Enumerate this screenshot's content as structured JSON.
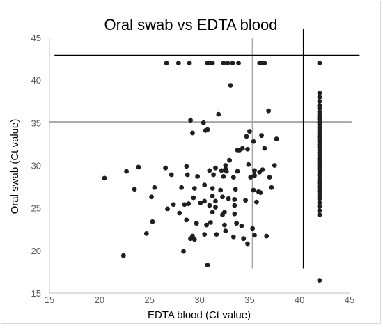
{
  "chart_data": {
    "type": "scatter",
    "title": "Oral swab vs EDTA blood",
    "xlabel": "EDTA blood (Ct value)",
    "ylabel": "Oral swab (Ct value)",
    "xlim": [
      15,
      45
    ],
    "ylim": [
      15,
      45
    ],
    "x_ticks": [
      "15",
      "20",
      "25",
      "30",
      "35",
      "40",
      "45"
    ],
    "y_ticks": [
      "15",
      "20",
      "25",
      "30",
      "35",
      "40",
      "45"
    ],
    "grid": false,
    "legend": "none",
    "colors": {
      "points": "#1f1f1f",
      "cutoff_lines": "#a6a6a6",
      "negative_lines": "#000000"
    },
    "reference_lines": [
      {
        "orientation": "horizontal",
        "y": 35.1,
        "x_range": [
          15,
          45.2
        ],
        "color": "#a6a6a6"
      },
      {
        "orientation": "vertical",
        "x": 35.3,
        "y_range": [
          17.9,
          45
        ],
        "color": "#a6a6a6"
      },
      {
        "orientation": "horizontal",
        "y": 42.9,
        "x_range": [
          15.5,
          46
        ],
        "color": "#000000"
      },
      {
        "orientation": "vertical",
        "x": 40.4,
        "y_range": [
          17.9,
          46
        ],
        "color": "#000000"
      }
    ],
    "points": [
      [
        26.7,
        42
      ],
      [
        27.9,
        42
      ],
      [
        29.0,
        42
      ],
      [
        30.8,
        42
      ],
      [
        31.0,
        42
      ],
      [
        31.3,
        42
      ],
      [
        32.4,
        42
      ],
      [
        32.8,
        42
      ],
      [
        33.3,
        42
      ],
      [
        33.9,
        42
      ],
      [
        36.0,
        42
      ],
      [
        36.2,
        42
      ],
      [
        36.5,
        42
      ],
      [
        33.1,
        39.4
      ],
      [
        36.9,
        36.4
      ],
      [
        31.9,
        36.0
      ],
      [
        29.1,
        35.3
      ],
      [
        30.4,
        35.0
      ],
      [
        30.6,
        34.1
      ],
      [
        30.8,
        34.2
      ],
      [
        29.3,
        33.8
      ],
      [
        35.0,
        34.0
      ],
      [
        34.7,
        33.4
      ],
      [
        36.2,
        33.5
      ],
      [
        37.7,
        33.1
      ],
      [
        35.4,
        32.8
      ],
      [
        34.3,
        32.0
      ],
      [
        33.8,
        31.8
      ],
      [
        34.0,
        31.8
      ],
      [
        34.8,
        31.9
      ],
      [
        36.5,
        32.0
      ],
      [
        32.6,
        30.0
      ],
      [
        33.0,
        30.6
      ],
      [
        34.9,
        30.1
      ],
      [
        36.0,
        29.2
      ],
      [
        37.5,
        30.0
      ],
      [
        23.9,
        29.8
      ],
      [
        26.6,
        29.7
      ],
      [
        28.7,
        29.9
      ],
      [
        31.0,
        29.4
      ],
      [
        31.6,
        29.7
      ],
      [
        32.2,
        29.4
      ],
      [
        32.6,
        29.6
      ],
      [
        32.7,
        29.3
      ],
      [
        33.8,
        29.3
      ],
      [
        35.5,
        29.4
      ],
      [
        36.3,
        29.5
      ],
      [
        37.0,
        28.6
      ],
      [
        20.5,
        28.5
      ],
      [
        22.7,
        29.3
      ],
      [
        27.2,
        28.9
      ],
      [
        28.8,
        28.9
      ],
      [
        29.8,
        28.7
      ],
      [
        31.4,
        28.9
      ],
      [
        32.4,
        28.7
      ],
      [
        33.4,
        28.6
      ],
      [
        35.1,
        28.6
      ],
      [
        35.5,
        28.8
      ],
      [
        25.5,
        27.4
      ],
      [
        23.5,
        27.2
      ],
      [
        28.2,
        27.4
      ],
      [
        29.5,
        27.3
      ],
      [
        30.5,
        27.7
      ],
      [
        31.3,
        27.3
      ],
      [
        32.1,
        27.1
      ],
      [
        33.6,
        27.2
      ],
      [
        35.4,
        27.1
      ],
      [
        35.9,
        26.9
      ],
      [
        36.1,
        26.8
      ],
      [
        37.2,
        27.4
      ],
      [
        25.2,
        26.3
      ],
      [
        29.4,
        26.2
      ],
      [
        31.3,
        26.4
      ],
      [
        31.6,
        25.8
      ],
      [
        32.3,
        26.3
      ],
      [
        32.9,
        26.1
      ],
      [
        33.5,
        26.0
      ],
      [
        34.6,
        25.9
      ],
      [
        35.7,
        25.7
      ],
      [
        27.4,
        25.4
      ],
      [
        28.5,
        25.4
      ],
      [
        28.9,
        25.5
      ],
      [
        30.1,
        25.6
      ],
      [
        30.5,
        25.8
      ],
      [
        31.0,
        25.3
      ],
      [
        31.6,
        25.1
      ],
      [
        33.5,
        25.3
      ],
      [
        26.8,
        24.9
      ],
      [
        28.0,
        24.4
      ],
      [
        31.3,
        24.5
      ],
      [
        32.3,
        24.2
      ],
      [
        32.5,
        24.5
      ],
      [
        33.5,
        24.3
      ],
      [
        25.3,
        23.4
      ],
      [
        28.7,
        23.6
      ],
      [
        29.7,
        23.2
      ],
      [
        30.7,
        23.0
      ],
      [
        31.1,
        23.3
      ],
      [
        32.5,
        23.0
      ],
      [
        33.7,
        23.2
      ],
      [
        34.2,
        22.9
      ],
      [
        24.7,
        22.0
      ],
      [
        29.1,
        21.4
      ],
      [
        29.3,
        21.7
      ],
      [
        29.5,
        21.3
      ],
      [
        30.5,
        21.9
      ],
      [
        31.7,
        21.9
      ],
      [
        32.6,
        22.3
      ],
      [
        33.4,
        21.6
      ],
      [
        34.4,
        21.4
      ],
      [
        35.3,
        22.6
      ],
      [
        35.5,
        21.8
      ],
      [
        36.7,
        21.7
      ],
      [
        22.4,
        19.4
      ],
      [
        28.4,
        19.9
      ],
      [
        34.8,
        20.8
      ],
      [
        30.8,
        18.3
      ],
      [
        42,
        42.0
      ],
      [
        42,
        38.5
      ],
      [
        42,
        38.0
      ],
      [
        42,
        37.5
      ],
      [
        42,
        37.0
      ],
      [
        42,
        36.7
      ],
      [
        42,
        36.3
      ],
      [
        42,
        36.0
      ],
      [
        42,
        35.7
      ],
      [
        42,
        35.4
      ],
      [
        42,
        35.1
      ],
      [
        42,
        34.8
      ],
      [
        42,
        34.5
      ],
      [
        42,
        34.2
      ],
      [
        42,
        33.9
      ],
      [
        42,
        33.6
      ],
      [
        42,
        33.3
      ],
      [
        42,
        33.0
      ],
      [
        42,
        32.7
      ],
      [
        42,
        32.4
      ],
      [
        42,
        32.1
      ],
      [
        42,
        31.8
      ],
      [
        42,
        31.5
      ],
      [
        42,
        31.2
      ],
      [
        42,
        30.9
      ],
      [
        42,
        30.6
      ],
      [
        42,
        30.3
      ],
      [
        42,
        30.0
      ],
      [
        42,
        29.7
      ],
      [
        42,
        29.4
      ],
      [
        42,
        29.1
      ],
      [
        42,
        28.8
      ],
      [
        42,
        28.5
      ],
      [
        42,
        28.2
      ],
      [
        42,
        27.9
      ],
      [
        42,
        27.6
      ],
      [
        42,
        27.3
      ],
      [
        42,
        27.0
      ],
      [
        42,
        26.7
      ],
      [
        42,
        26.4
      ],
      [
        42,
        26.1
      ],
      [
        42,
        25.6
      ],
      [
        42,
        25.2
      ],
      [
        42,
        24.7
      ],
      [
        42,
        24.2
      ],
      [
        42,
        16.5
      ]
    ]
  }
}
